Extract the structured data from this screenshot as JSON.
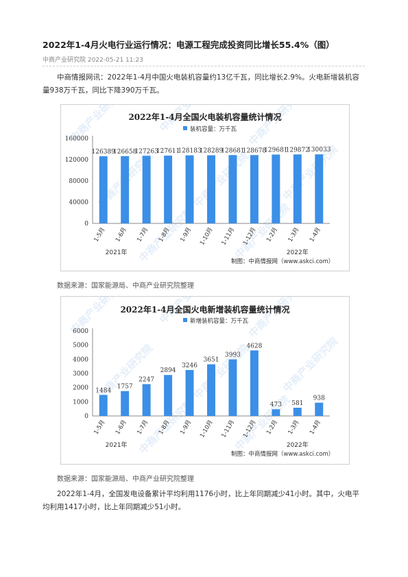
{
  "article": {
    "title": "2022年1-4月火电行业运行情况：电源工程完成投资同比增长55.4%（图）",
    "source_line": "中商产业研究院 2022-05-21 11:23",
    "intro": "中商情报网讯：2022年1-4月中国火电装机容量约13亿千瓦，同比增长2.9%。火电新增装机容量938万千瓦，同比下降390万千瓦。",
    "data_source_1": "数据来源：国家能源局、中商产业研究院整理",
    "data_source_2": "数据来源：国家能源局、中商产业研究院整理",
    "closing": "2022年1-4月，全国发电设备累计平均利用1176小时，比上年同期减少41小时。其中，火电平均利用1417小时，比上年同期减少51小时。"
  },
  "watermark": "中商产业研究院",
  "chart_data": [
    {
      "type": "bar",
      "title": "2022年1-4月全国火电装机容量统计情况",
      "legend": "装机容量：万千瓦",
      "credit": "制图：中商情报网（www.askci.com）",
      "categories": [
        "1-5月",
        "1-6月",
        "1-7月",
        "1-8月",
        "1-9月",
        "1-10月",
        "1-11月",
        "1-12月",
        "1-2月",
        "1-3月",
        "1-4月"
      ],
      "year_labels": [
        "2021年",
        "2022年"
      ],
      "values": [
        126389,
        126658,
        127263,
        127611,
        128183,
        128289,
        128681,
        128678,
        129681,
        129872,
        130033
      ],
      "yticks": [
        0,
        40000,
        80000,
        120000,
        160000
      ],
      "ylim": [
        0,
        160000
      ],
      "color": "#3b8fe6"
    },
    {
      "type": "bar",
      "title": "2022年1-4月全国火电新增装机容量统计情况",
      "legend": "新增装机容量：万千瓦",
      "credit": "制图：中商情报网（www.askci.com）",
      "categories": [
        "1-5月",
        "1-6月",
        "1-7月",
        "1-8月",
        "1-9月",
        "1-10月",
        "1-11月",
        "1-12月",
        "1-2月",
        "1-3月",
        "1-4月"
      ],
      "year_labels": [
        "2021年",
        "2022年"
      ],
      "values": [
        1484,
        1757,
        2247,
        2894,
        3246,
        3651,
        3993,
        4628,
        473,
        581,
        938
      ],
      "yticks": [
        0,
        1000,
        2000,
        3000,
        4000,
        5000,
        6000
      ],
      "ylim": [
        0,
        6000
      ],
      "color": "#3b8fe6"
    }
  ]
}
